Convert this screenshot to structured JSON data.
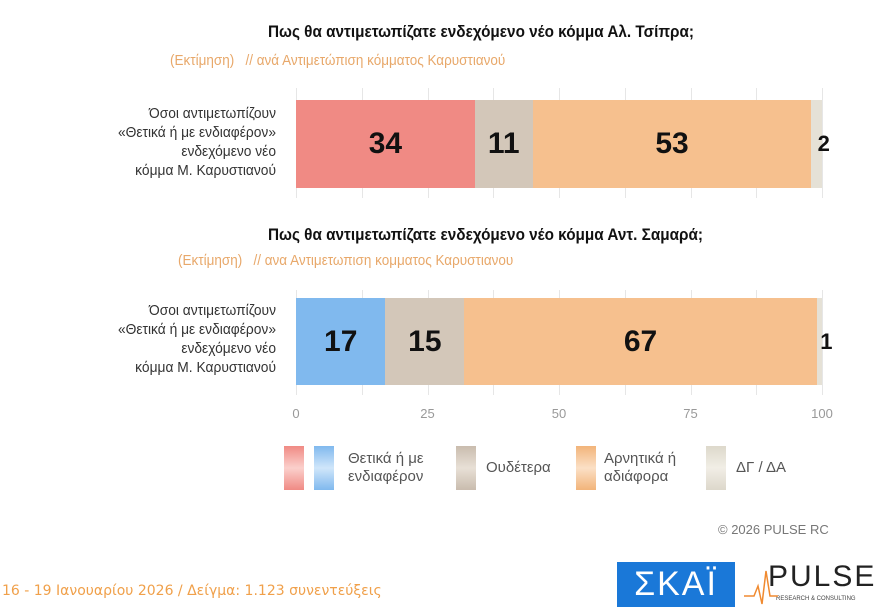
{
  "chart_data": [
    {
      "type": "bar",
      "orientation": "horizontal",
      "stacked": true,
      "title": "Πως θα αντιμετωπίζατε ενδεχόμενο νέο κόμμα Αλ. Τσίπρα;",
      "subtitle": "(Εκτίμηση)   // ανά Αντιμετώπιση κόμματος Καρυστιανού",
      "categories": [
        "Όσοι αντιμετωπίζουν «Θετικά ή με ενδιαφέρον» ενδεχόμενο νέο κόμμα Μ. Καρυστιανού"
      ],
      "category_lines": [
        "Όσοι αντιμετωπίζουν",
        "«Θετικά ή με ενδιαφέρον»",
        "ενδεχόμενο νέο",
        "κόμμα Μ. Καρυστιανού"
      ],
      "series": [
        {
          "name": "Θετικά ή με ενδιαφέρον",
          "values": [
            34
          ],
          "color": "#f08a84"
        },
        {
          "name": "Ουδέτερα",
          "values": [
            11
          ],
          "color": "#d3c7b9"
        },
        {
          "name": "Αρνητικά ή αδιάφορα",
          "values": [
            53
          ],
          "color": "#f6c08e"
        },
        {
          "name": "ΔΓ / ΔΑ",
          "values": [
            2
          ],
          "color": "#e5e1d6"
        }
      ],
      "xlim": [
        0,
        100
      ]
    },
    {
      "type": "bar",
      "orientation": "horizontal",
      "stacked": true,
      "title": "Πως θα αντιμετωπίζατε ενδεχόμενο νέο κόμμα Αντ. Σαμαρά;",
      "subtitle": "(Εκτίμηση)   // ανα Αντιμετωπιση κομματος Καρυστιανου",
      "categories": [
        "Όσοι αντιμετωπίζουν «Θετικά ή με ενδιαφέρον» ενδεχόμενο νέο κόμμα Μ. Καρυστιανού"
      ],
      "category_lines": [
        "Όσοι αντιμετωπίζουν",
        "«Θετικά ή με ενδιαφέρον»",
        "ενδεχόμενο νέο",
        "κόμμα Μ. Καρυστιανού"
      ],
      "series": [
        {
          "name": "Θετικά ή με ενδιαφέρον",
          "values": [
            17
          ],
          "color": "#80b9ee"
        },
        {
          "name": "Ουδέτερα",
          "values": [
            15
          ],
          "color": "#d3c7b9"
        },
        {
          "name": "Αρνητικά ή αδιάφορα",
          "values": [
            67
          ],
          "color": "#f6c08e"
        },
        {
          "name": "ΔΓ / ΔΑ",
          "values": [
            1
          ],
          "color": "#e5e1d6"
        }
      ],
      "xlim": [
        0,
        100
      ],
      "xticks": [
        "0",
        "25",
        "50",
        "75",
        "100"
      ],
      "grid": true
    }
  ],
  "legend": {
    "items": [
      {
        "label1": "Θετικά ή με",
        "label2": "ενδιαφέρον"
      },
      {
        "label1": "Ουδέτερα",
        "label2": ""
      },
      {
        "label1": "Αρνητικά ή",
        "label2": "αδιάφορα"
      },
      {
        "label1": "ΔΓ / ΔΑ",
        "label2": ""
      }
    ]
  },
  "copyright": "©  2026  PULSE RC",
  "footer": "16 - 19 Ιανουαρίου 2026  /  Δείγμα:  1.123 συνεντεύξεις",
  "logos": {
    "skai": "ΣΚΑΪ",
    "pulse": "PULSE",
    "pulse_sub": "RESEARCH & CONSULTING"
  }
}
